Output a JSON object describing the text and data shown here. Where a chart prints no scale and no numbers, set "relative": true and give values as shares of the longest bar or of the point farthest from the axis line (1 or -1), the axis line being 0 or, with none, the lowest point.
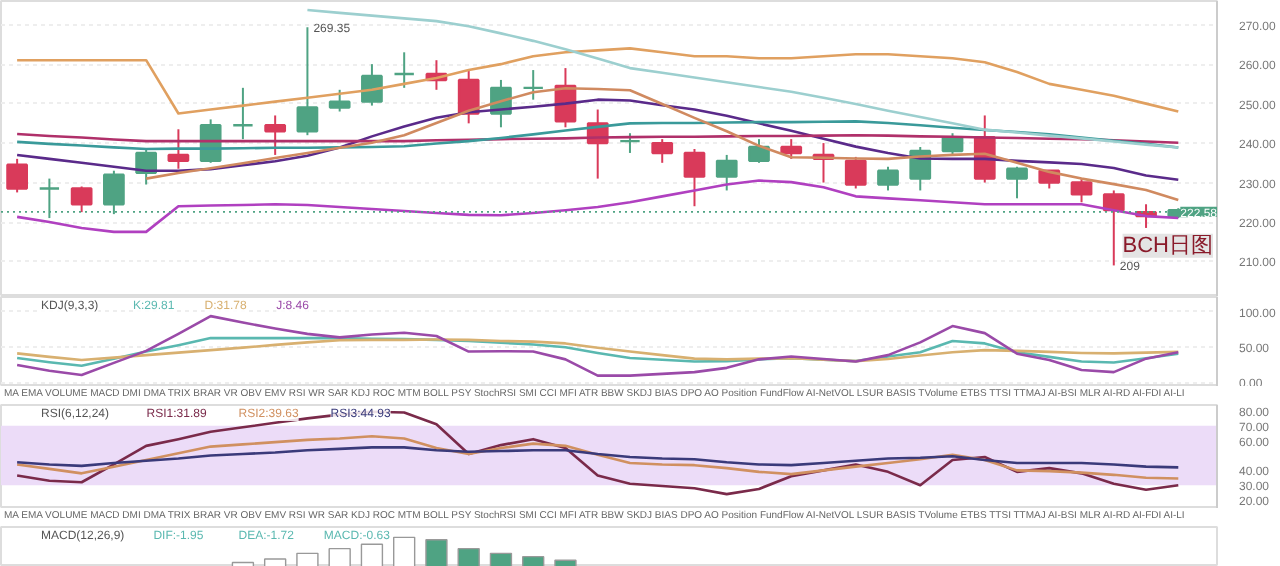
{
  "chart_data": [
    {
      "type": "candlestick",
      "categories": [
        null,
        null,
        null,
        null,
        null,
        null,
        null,
        null,
        null,
        null,
        null,
        null,
        null,
        null,
        null,
        null,
        null,
        null,
        null,
        null,
        null,
        null,
        null,
        null,
        null,
        null,
        null,
        null,
        null,
        null,
        null,
        null,
        null,
        null,
        null,
        null,
        null
      ],
      "ohlc": [
        [
          234.5,
          236,
          227.5,
          228.5
        ],
        [
          228.5,
          231,
          221,
          228.5
        ],
        [
          228.5,
          229,
          222.5,
          224.5
        ],
        [
          224.5,
          233,
          222,
          232
        ],
        [
          232.5,
          238.5,
          229.5,
          237.5
        ],
        [
          237,
          243.5,
          233.5,
          235.5
        ],
        [
          235.5,
          246,
          235,
          244.5
        ],
        [
          244.5,
          254,
          241,
          244.5
        ],
        [
          244.5,
          247,
          237,
          243
        ],
        [
          243,
          269.35,
          242,
          249
        ],
        [
          249,
          253.5,
          248,
          250.5
        ],
        [
          250.5,
          260,
          249.5,
          257
        ],
        [
          257.5,
          263,
          254,
          257.5
        ],
        [
          257.5,
          261,
          253.5,
          256
        ],
        [
          256,
          258.5,
          245,
          247.5
        ],
        [
          247.5,
          256,
          244,
          254
        ],
        [
          254,
          258.5,
          251,
          254
        ],
        [
          254.5,
          259,
          244,
          245.5
        ],
        [
          245,
          248.5,
          231,
          240
        ],
        [
          240.5,
          242.5,
          237.5,
          240.5
        ],
        [
          240,
          241,
          235,
          237.5
        ],
        [
          237.5,
          238.5,
          224,
          231.5
        ],
        [
          231.5,
          237,
          228,
          235.5
        ],
        [
          235.5,
          241,
          235,
          239
        ],
        [
          239,
          241,
          236,
          237.5
        ],
        [
          237,
          240,
          230,
          236
        ],
        [
          235.5,
          236.5,
          228.5,
          229.5
        ],
        [
          229.5,
          234,
          228,
          233
        ],
        [
          231,
          239,
          228,
          238
        ],
        [
          238,
          242.5,
          237,
          241.5
        ],
        [
          241.5,
          247,
          230,
          231
        ],
        [
          231,
          234,
          226,
          233.5
        ],
        [
          233,
          233,
          228.5,
          230
        ],
        [
          230,
          231,
          225,
          227
        ],
        [
          227,
          228,
          209,
          223
        ],
        [
          222.5,
          224.5,
          218.5,
          221.5
        ],
        [
          221.5,
          223.5,
          221,
          223
        ]
      ],
      "colors": [
        "#d93a5a",
        "#4fa383",
        "#d93a5a",
        "#4fa383",
        "#4fa383",
        "#d93a5a",
        "#4fa383",
        "#4fa383",
        "#d93a5a",
        "#4fa383",
        "#4fa383",
        "#4fa383",
        "#4fa383",
        "#d93a5a",
        "#d93a5a",
        "#4fa383",
        "#4fa383",
        "#d93a5a",
        "#d93a5a",
        "#4fa383",
        "#d93a5a",
        "#d93a5a",
        "#4fa383",
        "#4fa383",
        "#d93a5a",
        "#d93a5a",
        "#d93a5a",
        "#4fa383",
        "#4fa383",
        "#4fa383",
        "#d93a5a",
        "#4fa383",
        "#d93a5a",
        "#d93a5a",
        "#d93a5a",
        "#d93a5a",
        "#4fa383"
      ],
      "series": [
        {
          "type": "line",
          "color": "#e0a060",
          "values": [
            261,
            261,
            261,
            261,
            261,
            247.5,
            248.5,
            249.5,
            250.5,
            251.5,
            252.5,
            253.5,
            255,
            256.5,
            258.5,
            260,
            262,
            263,
            263.5,
            264,
            263,
            262,
            262,
            261.5,
            261.5,
            262,
            262.5,
            262.5,
            262,
            261.5,
            260.5,
            258,
            255,
            253.5,
            252,
            250,
            248
          ]
        },
        {
          "type": "line",
          "color": "#b040c0",
          "values": [
            221.3,
            220,
            218.5,
            217.5,
            217.5,
            224,
            224.2,
            224.3,
            224.5,
            224.3,
            223.8,
            223.3,
            222.8,
            222.3,
            221.8,
            221.7,
            222.3,
            223,
            223.8,
            225,
            226.5,
            228,
            229.5,
            230.5,
            230.1,
            228.8,
            226.5,
            226,
            225.5,
            225,
            224.5,
            224.5,
            224.5,
            224.5,
            223,
            221.5,
            221
          ]
        },
        {
          "type": "line",
          "color": "#5a2a8a",
          "values": [
            237,
            236,
            235,
            234,
            233,
            233,
            233.4,
            234.4,
            235.4,
            236.8,
            238.9,
            241.7,
            244.2,
            246.4,
            247.8,
            248.5,
            249.2,
            250,
            251,
            250.8,
            249.6,
            248.5,
            246.9,
            245,
            243.1,
            241.1,
            239.1,
            237.5,
            236.1,
            236,
            236,
            235.5,
            235.1,
            234.7,
            233.7,
            231.8,
            230.7
          ]
        },
        {
          "type": "line",
          "color": "#b0306a",
          "values": [
            242.3,
            241.8,
            241.4,
            240.9,
            240.5,
            240.5,
            240.5,
            240.5,
            240.5,
            240.5,
            240.5,
            240.5,
            240.5,
            240.7,
            240.8,
            241,
            241.1,
            241.2,
            241.4,
            241.5,
            241.6,
            241.6,
            241.7,
            241.8,
            241.8,
            241.9,
            242,
            241.9,
            241.7,
            241.6,
            241.4,
            241.3,
            241.1,
            241,
            240.7,
            240.4,
            240.1
          ]
        },
        {
          "type": "line",
          "color": "#3a9a9a",
          "values": [
            240.3,
            239.8,
            239.4,
            238.9,
            238.5,
            238.6,
            238.6,
            238.7,
            238.8,
            238.8,
            238.9,
            239,
            239.2,
            239.9,
            240.5,
            241.3,
            242.2,
            243.2,
            244.1,
            245,
            245.1,
            245.1,
            245.2,
            245.3,
            245.3,
            245.4,
            245.5,
            245.1,
            244.5,
            243.9,
            243.3,
            242.8,
            242.2,
            241.4,
            240.6,
            239.8,
            238.9
          ]
        },
        {
          "type": "line",
          "color": "#9ccfcf",
          "values": [
            null,
            null,
            null,
            null,
            null,
            null,
            null,
            null,
            null,
            273.7,
            273,
            272.3,
            271.6,
            270.9,
            269.6,
            267.8,
            265.9,
            263.8,
            261.4,
            259,
            257.8,
            256.6,
            255.4,
            254.2,
            253,
            251.5,
            249.9,
            248.2,
            246.6,
            245,
            243.4,
            242.7,
            241.9,
            241.2,
            240.4,
            239.6,
            238.9
          ]
        },
        {
          "type": "line",
          "color": "#d08a60",
          "values": [
            null,
            null,
            null,
            null,
            231,
            232.4,
            233.6,
            234.9,
            236.2,
            237.5,
            238.8,
            240.1,
            242,
            245.1,
            248.2,
            250.6,
            252.9,
            253.9,
            253.7,
            253.4,
            249.9,
            246.4,
            243,
            239.3,
            236.4,
            236.3,
            236.1,
            236,
            236.6,
            237,
            237.3,
            235,
            232.7,
            231,
            229.6,
            228.1,
            225.6
          ]
        }
      ],
      "ylim": [
        201,
        276
      ],
      "yticks": [
        {
          "value": 210,
          "label": "210.00"
        },
        {
          "value": 220,
          "label": "220.00"
        },
        {
          "value": 230,
          "label": "230.00"
        },
        {
          "value": 240,
          "label": "240.00"
        },
        {
          "value": 250,
          "label": "250.00"
        },
        {
          "value": 260,
          "label": "260.00"
        },
        {
          "value": 270,
          "label": "270.00"
        }
      ],
      "tick_labels": "y",
      "grid": "y",
      "ref_lines": [
        {
          "axis": "y",
          "value": 222.58,
          "label": "222.58",
          "line_style": "dotted",
          "color": "#4fa383"
        }
      ],
      "annotations": [
        "269.35",
        "209",
        "BCH日图"
      ]
    },
    {
      "type": "line",
      "title": "KDJ(9,3,3)",
      "categories": [
        null,
        null,
        null,
        null,
        null,
        null,
        null,
        null,
        null,
        null,
        null,
        null,
        null,
        null,
        null,
        null,
        null,
        null,
        null,
        null,
        null,
        null,
        null,
        null,
        null,
        null,
        null,
        null,
        null,
        null,
        null,
        null,
        null,
        null,
        null,
        null,
        null
      ],
      "series": [
        {
          "name": "K:29.81",
          "color": "#5ab8b0",
          "values": [
            35,
            29,
            24,
            34,
            44,
            53,
            63,
            63,
            63,
            63,
            63,
            62,
            61.5,
            60.5,
            59,
            56.5,
            54,
            50,
            42,
            35,
            32.5,
            30,
            30.5,
            33,
            34.5,
            32.5,
            30.5,
            37,
            43,
            59,
            55.5,
            43,
            36.5,
            30,
            28.5,
            34.5,
            41
          ]
        },
        {
          "name": "D:31.78",
          "color": "#d8b070",
          "values": [
            41.5,
            36.5,
            32,
            35.5,
            39,
            42.5,
            46,
            49.5,
            53.5,
            57,
            60,
            60.5,
            60.5,
            61,
            60.5,
            59,
            58,
            55.5,
            49.5,
            44,
            39,
            34,
            33,
            34,
            34.5,
            32.5,
            30.5,
            33.5,
            38.5,
            43,
            46,
            45,
            43.5,
            42,
            41.5,
            42.5,
            43.5
          ]
        },
        {
          "name": "J:8.46",
          "color": "#9a4aa8",
          "values": [
            25,
            17,
            11,
            28,
            45,
            69,
            94,
            85,
            76.5,
            69,
            64,
            68,
            70.5,
            66,
            44,
            44.5,
            44,
            33,
            10,
            10,
            12.5,
            15,
            21,
            33,
            37,
            33.5,
            30,
            39,
            57,
            80,
            70,
            41,
            32,
            18,
            15,
            34,
            43
          ]
        }
      ],
      "ylim": [
        -6,
        121
      ],
      "yticks": [
        {
          "value": 0,
          "label": "0.00"
        },
        {
          "value": 50,
          "label": "50.00"
        },
        {
          "value": 100,
          "label": "100.00"
        }
      ],
      "tick_labels": "y",
      "grid": "y",
      "annotations": [
        "MA EMA VOLUME MACD DMI DMA TRIX BRAR VR OBV EMV RSI WR SAR KDJ ROC MTM BOLL PSY StochRSI SMI CCI MFI ATR BBW SKDJ BIAS DPO AO Position FundFlow AI-NetVOL LSUR BASIS TVolume ETBS TTSI TTMAJ AI-BSI MLR AI-RD AI-FDI AI-LI"
      ]
    },
    {
      "type": "line",
      "title": "RSI(6,12,24)",
      "categories": [
        null,
        null,
        null,
        null,
        null,
        null,
        null,
        null,
        null,
        null,
        null,
        null,
        null,
        null,
        null,
        null,
        null,
        null,
        null,
        null,
        null,
        null,
        null,
        null,
        null,
        null,
        null,
        null,
        null,
        null,
        null,
        null,
        null,
        null,
        null,
        null,
        null
      ],
      "series": [
        {
          "name": "RSI1:31.89",
          "color": "#7a2a4a",
          "values": [
            36.5,
            33,
            32,
            44,
            56.5,
            61,
            66,
            69,
            72,
            75,
            77.5,
            79.5,
            79,
            71,
            51,
            57,
            61,
            55,
            36.5,
            31,
            29.5,
            28,
            24,
            27.5,
            36,
            40,
            44,
            39,
            30,
            47,
            49,
            39,
            41.5,
            38,
            31,
            27,
            30
          ]
        },
        {
          "name": "RSI2:39.63",
          "color": "#d09060",
          "values": [
            44,
            41,
            38,
            42.5,
            47,
            51.5,
            56,
            57.5,
            59,
            60.5,
            61.5,
            63,
            61.5,
            55,
            51,
            55,
            58,
            56.5,
            50.5,
            45,
            44,
            43.5,
            41.5,
            39,
            37.5,
            40,
            42.5,
            45,
            47.5,
            50.5,
            47,
            40,
            39.5,
            38.5,
            37,
            35,
            34.5
          ]
        },
        {
          "name": "RSI3:44.93",
          "color": "#3a3a7a",
          "values": [
            45.5,
            44,
            43,
            45,
            46.5,
            48,
            50,
            51,
            52,
            53.5,
            54.5,
            55.5,
            55.5,
            53.5,
            52.5,
            53,
            53.5,
            53.5,
            51,
            49,
            48,
            47.5,
            45.5,
            44,
            43.5,
            45,
            46.5,
            48,
            48.5,
            49.5,
            47,
            45,
            45,
            45,
            44,
            42.5,
            42
          ]
        }
      ],
      "ylim": [
        14,
        84
      ],
      "yticks": [
        {
          "value": 20,
          "label": "20.00"
        },
        {
          "value": 30,
          "label": "30.00"
        },
        {
          "value": 40,
          "label": "40.00"
        },
        {
          "value": 60,
          "label": "60.00"
        },
        {
          "value": 70,
          "label": "70.00"
        },
        {
          "value": 80,
          "label": "80.00"
        }
      ],
      "tick_labels": "y",
      "bands": [
        {
          "axis": "y",
          "from": 30,
          "to": 70,
          "color": "#ecdcf8"
        }
      ],
      "annotations": [
        "MA EMA VOLUME MACD DMI DMA TRIX BRAR VR OBV EMV RSI WR SAR KDJ ROC MTM BOLL PSY StochRSI SMI CCI MFI ATR BBW SKDJ BIAS DPO AO Position FundFlow AI-NetVOL LSUR BASIS TVolume ETBS TTSI TTMAJ AI-BSI MLR AI-RD AI-FDI AI-LI"
      ]
    },
    {
      "type": "bar",
      "title": "MACD(12,26,9)",
      "relative": true,
      "categories": [
        null,
        null,
        null,
        null,
        null,
        null,
        null,
        null,
        null,
        null,
        null,
        null,
        null,
        null,
        null,
        null,
        null,
        null,
        null,
        null,
        null,
        null,
        null,
        null,
        null,
        null,
        null,
        null,
        null,
        null,
        null,
        null,
        null,
        null,
        null,
        null,
        null
      ],
      "values": [
        null,
        null,
        null,
        null,
        null,
        null,
        null,
        0.15,
        0.27,
        0.46,
        0.62,
        0.77,
        1,
        0.92,
        0.62,
        0.46,
        0.35,
        0.23,
        null,
        null,
        null,
        null,
        null,
        null,
        null,
        null,
        null,
        null,
        null,
        null,
        null,
        null,
        null,
        null,
        null,
        null,
        null
      ],
      "colors": [
        "#ffffff",
        "#ffffff",
        "#ffffff",
        "#ffffff",
        "#ffffff",
        "#ffffff",
        "#ffffff",
        "#ffffff",
        "#ffffff",
        "#ffffff",
        "#ffffff",
        "#ffffff",
        "#ffffff",
        "#4fa383",
        "#4fa383",
        "#4fa383",
        "#4fa383",
        "#4fa383",
        "#4fa383",
        "#4fa383",
        "#4fa383",
        "#4fa383",
        "#4fa383",
        "#4fa383",
        "#4fa383",
        "#4fa383",
        "#4fa383",
        "#4fa383",
        "#4fa383",
        "#4fa383",
        "#4fa383",
        "#4fa383",
        "#4fa383",
        "#4fa383",
        "#4fa383",
        "#4fa383",
        "#4fa383"
      ],
      "annotations": [
        "DIF:-1.95",
        "DEA:-1.72",
        "MACD:-0.63"
      ]
    }
  ]
}
